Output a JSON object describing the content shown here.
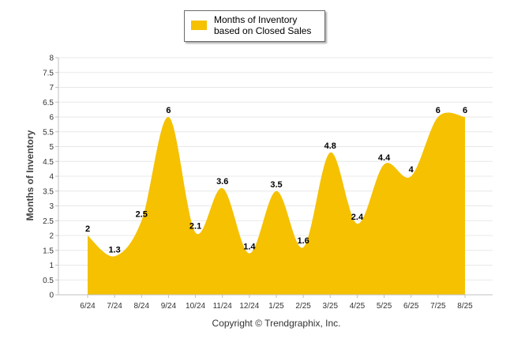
{
  "legend": {
    "label": "Months of Inventory based on Closed Sales"
  },
  "copyright": "Copyright © Trendgraphix, Inc.",
  "colors": {
    "series": "#f5c100",
    "axis": "#c0c0c0",
    "grid": "#e8e8e8"
  },
  "chart_data": {
    "type": "area",
    "categories": [
      "6/24",
      "7/24",
      "8/24",
      "9/24",
      "10/24",
      "11/24",
      "12/24",
      "1/25",
      "2/25",
      "3/25",
      "4/25",
      "5/25",
      "6/25",
      "7/25",
      "8/25"
    ],
    "series": [
      {
        "name": "Months of Inventory based on Closed Sales",
        "values": [
          2,
          1.3,
          2.5,
          6,
          2.1,
          3.6,
          1.4,
          3.5,
          1.6,
          4.8,
          2.4,
          4.4,
          4,
          6,
          6
        ]
      }
    ],
    "ylabel": "Months of Inventory",
    "ylim": [
      0,
      8
    ],
    "yticks": [
      "0",
      "0.5",
      "1",
      "1.5",
      "2",
      "2.5",
      "3",
      "3.5",
      "4",
      "4.5",
      "5",
      "5.5",
      "6",
      "6.5",
      "7",
      "7.5",
      "8"
    ],
    "grid": true,
    "legend_position": "top"
  }
}
